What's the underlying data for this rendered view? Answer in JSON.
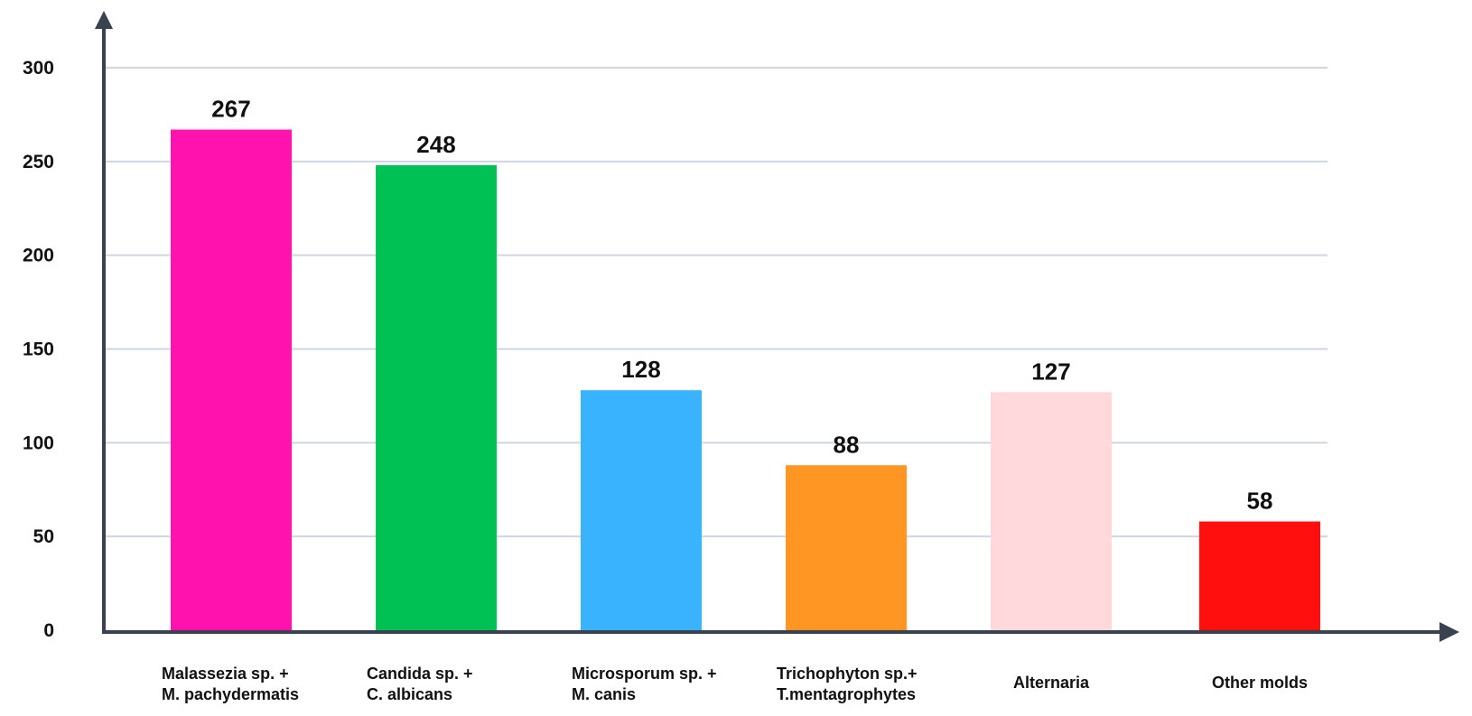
{
  "chart_data": {
    "type": "bar",
    "categories": [
      [
        "Malassezia sp. +",
        "M. pachydermatis"
      ],
      [
        "Candida sp. +",
        "C. albicans"
      ],
      [
        "Microsporum sp. +",
        "M. canis"
      ],
      [
        "Trichophyton sp.+",
        "T.mentagrophytes"
      ],
      [
        "Alternaria"
      ],
      [
        "Other molds"
      ]
    ],
    "values": [
      267,
      248,
      128,
      88,
      127,
      58
    ],
    "data_labels": [
      "267",
      "248",
      "128",
      "88",
      "127",
      "58"
    ],
    "colors": [
      "#ff12ad",
      "#00c254",
      "#3ab3ff",
      "#ff9522",
      "#ffd9dc",
      "#ff100e"
    ],
    "ylim": [
      0,
      300
    ],
    "yticks": [
      0,
      50,
      100,
      150,
      200,
      250,
      300
    ],
    "ytick_labels": [
      "0",
      "50",
      "100",
      "150",
      "200",
      "250",
      "300"
    ],
    "grid": true,
    "grid_color": "#cfd6df",
    "axis_color": "#3a4250",
    "title": "",
    "xlabel": "",
    "ylabel": ""
  }
}
